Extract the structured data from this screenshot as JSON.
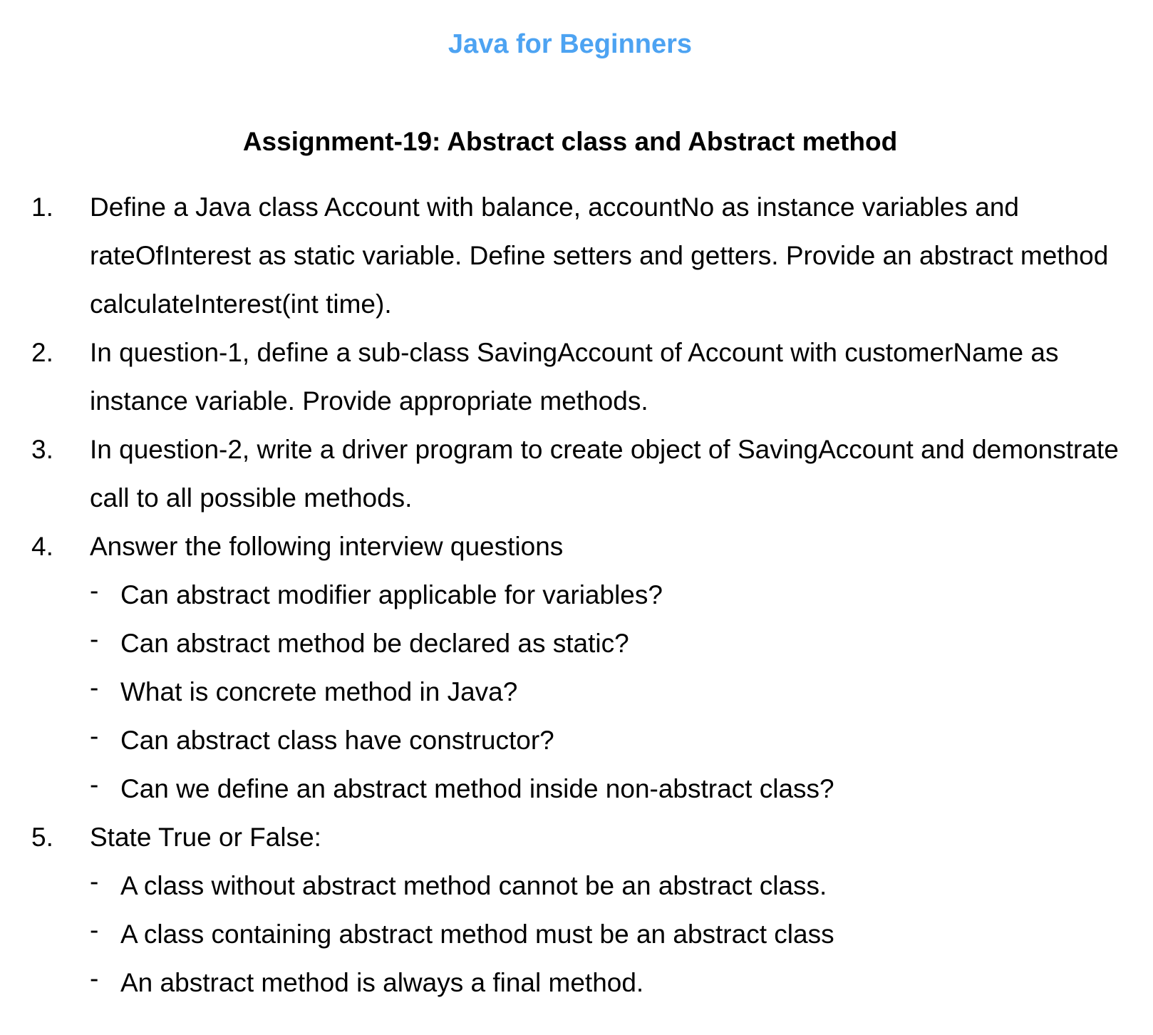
{
  "header": {
    "title": "Java for Beginners",
    "assignment": "Assignment-19: Abstract class and Abstract method"
  },
  "questions": [
    {
      "num": "1.",
      "text": "Define a Java class Account with balance, accountNo as instance variables and rateOfInterest as static variable. Define setters and getters. Provide an abstract method calculateInterest(int time)."
    },
    {
      "num": "2.",
      "text": "In question-1, define a sub-class SavingAccount of Account with customerName as instance variable. Provide appropriate methods."
    },
    {
      "num": "3.",
      "text": "In question-2, write a driver program to create object of SavingAccount and demonstrate call to all possible methods."
    },
    {
      "num": "4.",
      "text": "Answer the following interview questions",
      "subs": [
        "Can abstract modifier applicable for variables?",
        "Can abstract method be declared as static?",
        "What is concrete method in Java?",
        "Can abstract class have constructor?",
        "Can we define an abstract method inside non-abstract class?"
      ]
    },
    {
      "num": "5.",
      "text": "State True or False:",
      "subs": [
        "A class without abstract method cannot be an abstract class.",
        "A class containing abstract method must be an abstract class",
        "An abstract method is always a final method."
      ]
    }
  ],
  "bullet_symbol": "-",
  "colors": {
    "title": "#4da3f2",
    "text": "#000000"
  }
}
